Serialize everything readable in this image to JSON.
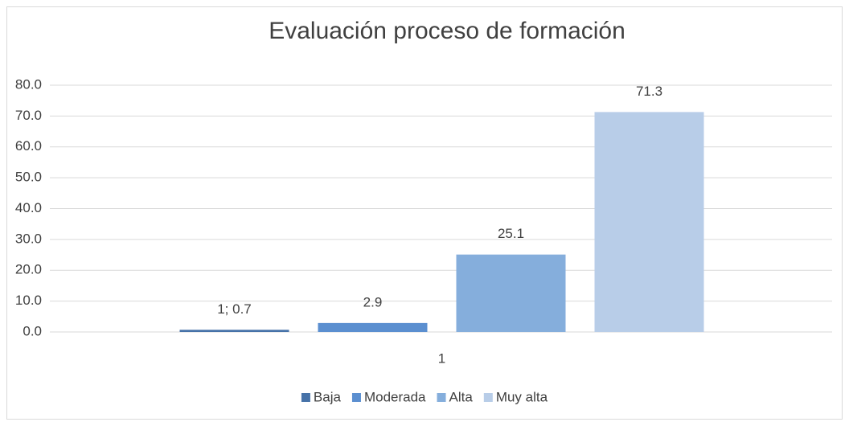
{
  "chart_data": {
    "type": "bar",
    "title": "Evaluación proceso de formación",
    "categories": [
      "1"
    ],
    "series": [
      {
        "name": "Baja",
        "color": "#4672a8",
        "values": [
          0.7
        ],
        "value_labels": [
          "1; 0.7"
        ]
      },
      {
        "name": "Moderada",
        "color": "#5b8fd0",
        "values": [
          2.9
        ]
      },
      {
        "name": "Alta",
        "color": "#85aedc",
        "values": [
          25.1
        ]
      },
      {
        "name": "Muy alta",
        "color": "#b8cde8",
        "values": [
          71.3
        ]
      }
    ],
    "ylim": [
      0,
      80
    ],
    "yticks": [
      {
        "value": 0,
        "label": "0.0"
      },
      {
        "value": 10,
        "label": "10.0"
      },
      {
        "value": 20,
        "label": "20.0"
      },
      {
        "value": 30,
        "label": "30.0"
      },
      {
        "value": 40,
        "label": "40.0"
      },
      {
        "value": 50,
        "label": "50.0"
      },
      {
        "value": 60,
        "label": "60.0"
      },
      {
        "value": 70,
        "label": "70.0"
      },
      {
        "value": 80,
        "label": "80.0"
      }
    ],
    "grid": true,
    "legend": "bottom"
  }
}
